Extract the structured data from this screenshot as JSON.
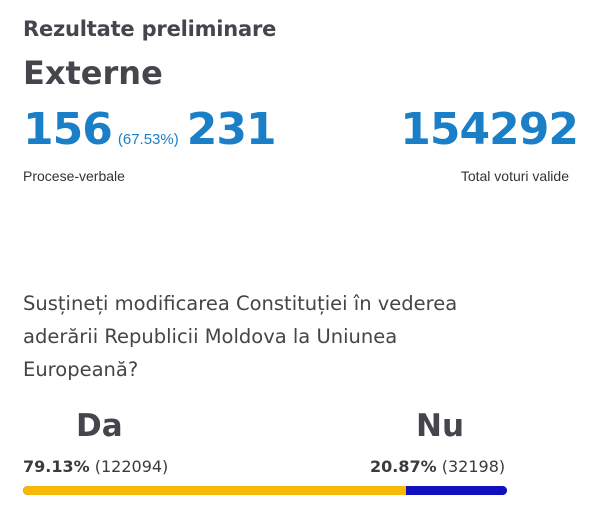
{
  "header": {
    "title": "Rezultate preliminare",
    "region": "Externe"
  },
  "counts": {
    "processed": "156",
    "processed_pct": "(67.53%)",
    "total_reports": "231",
    "reports_label": "Procese-verbale",
    "valid_votes": "154292",
    "valid_votes_label": "Total voturi valide"
  },
  "question": {
    "text": "Susțineți modificarea Constituției în vederea aderării Republicii Moldova la Uniunea Europeană?"
  },
  "options": {
    "da": {
      "label": "Da",
      "percent": "79.13%",
      "votes": "(122094)",
      "share": 79.13,
      "color": "#f6b908"
    },
    "nu": {
      "label": "Nu",
      "percent": "20.87%",
      "votes": "(32198)",
      "share": 20.87,
      "color": "#1010bf"
    }
  }
}
